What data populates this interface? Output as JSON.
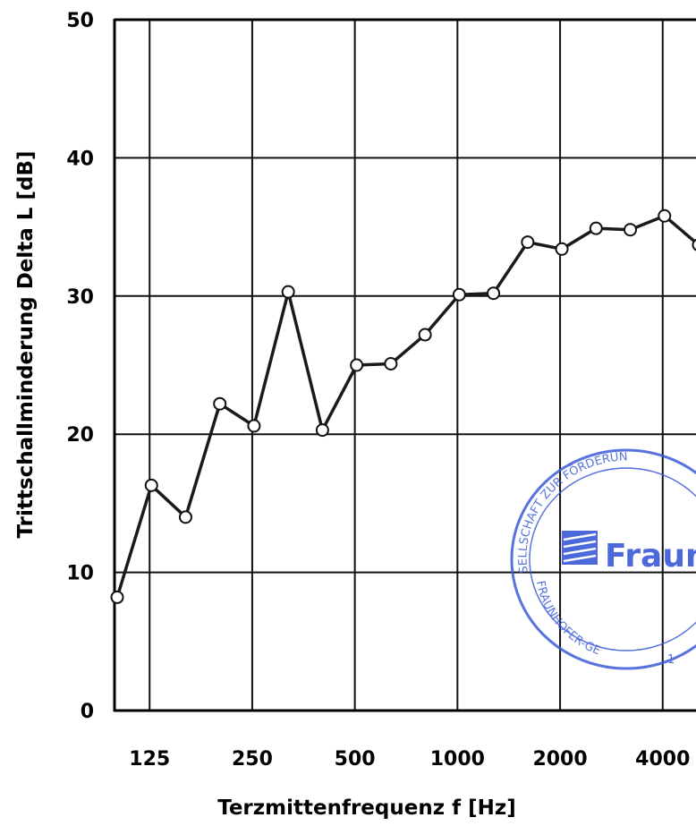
{
  "chart_data": {
    "type": "line",
    "xlabel": "Terzmittenfrequenz f [Hz]",
    "ylabel": "Trittschallminderung Delta L [dB]",
    "ylim": [
      0,
      50
    ],
    "y_ticks": [
      0,
      10,
      20,
      30,
      40,
      50
    ],
    "x_tick_labels": [
      "125",
      "250",
      "500",
      "1000",
      "2000",
      "4000"
    ],
    "grid": true,
    "series": [
      {
        "x": [
          100,
          125,
          160,
          200,
          250,
          315,
          400,
          500,
          630,
          800,
          1000,
          1250,
          1600,
          2000,
          2500,
          3150,
          4000,
          5000
        ],
        "values": [
          8.2,
          16.3,
          14.0,
          22.2,
          20.6,
          30.3,
          20.3,
          25.0,
          25.1,
          27.2,
          30.1,
          30.2,
          33.9,
          33.4,
          34.9,
          34.8,
          35.8,
          33.7
        ]
      }
    ],
    "line_color": "#1a1a1a",
    "marker": "open-circle"
  },
  "stamp": {
    "arc_text_top": "SELLSCHAFT ZUR FÖRDERUN",
    "arc_text_bottom": "FRAUNHOFER-GE",
    "logo_text": "Fraun",
    "number": "1",
    "color": "#2d4fd6"
  }
}
